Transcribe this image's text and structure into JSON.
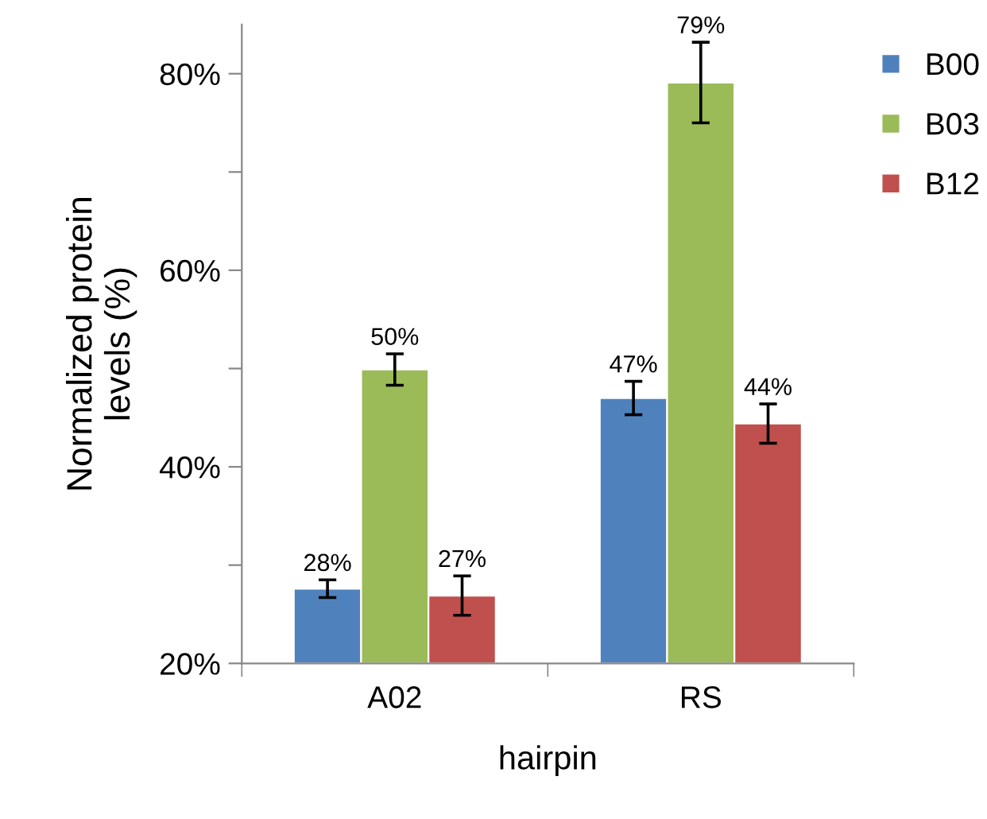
{
  "chart_data": {
    "type": "bar",
    "xlabel": "hairpin",
    "ylabel": "Normalized protein\nlevels (%)",
    "categories": [
      "A02",
      "RS"
    ],
    "series": [
      {
        "name": "B00",
        "color": "#4f81bd",
        "values": [
          27.6,
          47.0
        ],
        "errors": [
          0.9,
          1.7
        ],
        "value_labels": [
          "28%",
          "47%"
        ]
      },
      {
        "name": "B03",
        "color": "#9bbb59",
        "values": [
          49.9,
          79.1
        ],
        "errors": [
          1.6,
          4.1
        ],
        "value_labels": [
          "50%",
          "79%"
        ]
      },
      {
        "name": "B12",
        "color": "#c0504d",
        "values": [
          26.9,
          44.4
        ],
        "errors": [
          2.0,
          2.0
        ],
        "value_labels": [
          "27%",
          "44%"
        ]
      }
    ],
    "ylim": [
      20,
      85
    ],
    "yticks": [
      {
        "value": 20,
        "label": "20%"
      },
      {
        "value": 30,
        "label": null
      },
      {
        "value": 40,
        "label": "40%"
      },
      {
        "value": 50,
        "label": null
      },
      {
        "value": 60,
        "label": "60%"
      },
      {
        "value": 70,
        "label": null
      },
      {
        "value": 80,
        "label": "80%"
      }
    ],
    "grid": false,
    "legend": "top right"
  }
}
